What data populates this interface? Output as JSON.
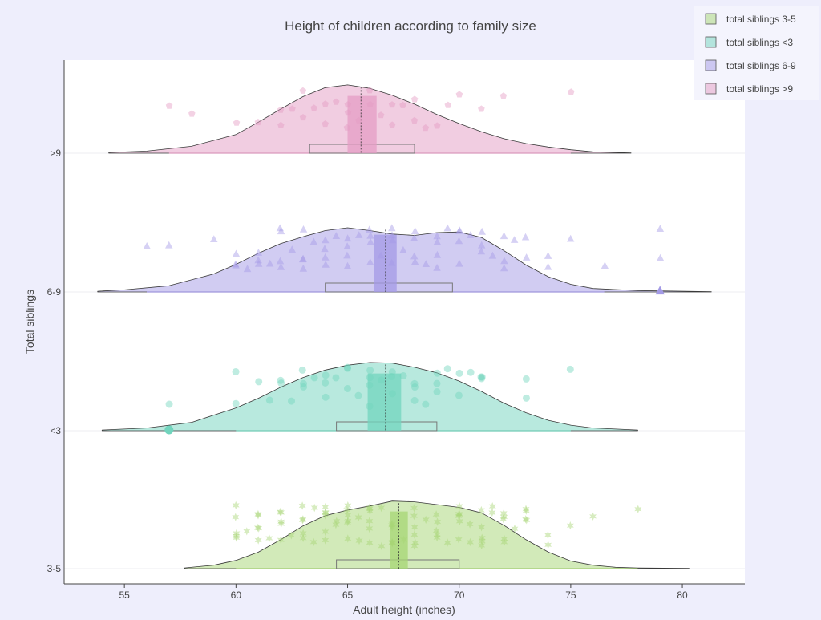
{
  "chart_data": {
    "type": "violin",
    "title": "Height of children according to family size",
    "xlabel": "Adult height (inches)",
    "ylabel": "Total siblings",
    "xlim": [
      52.3,
      82.8
    ],
    "xticks": [
      55,
      60,
      65,
      70,
      75,
      80
    ],
    "categories": [
      "3-5",
      "<3",
      "6-9",
      ">9"
    ],
    "legend_position": "top-right",
    "grid": true,
    "series": [
      {
        "name": "total siblings 3-5",
        "category": "3-5",
        "color": "#a6d574",
        "marker": "star",
        "kde_range": [
          57.7,
          80.3
        ],
        "whiskers": [
          60,
          78
        ],
        "q1": 64.5,
        "median": 67.0,
        "q3": 70.0,
        "mean": 67.3,
        "ci": [
          66.9,
          67.7
        ],
        "outliers": [],
        "density": [
          [
            57.7,
            0.01
          ],
          [
            59,
            0.05
          ],
          [
            60,
            0.12
          ],
          [
            61,
            0.24
          ],
          [
            62,
            0.42
          ],
          [
            63,
            0.62
          ],
          [
            64,
            0.77
          ],
          [
            65,
            0.85
          ],
          [
            66,
            0.91
          ],
          [
            67,
            0.98
          ],
          [
            68,
            0.97
          ],
          [
            69,
            0.93
          ],
          [
            70,
            0.89
          ],
          [
            71,
            0.81
          ],
          [
            72,
            0.63
          ],
          [
            73,
            0.42
          ],
          [
            74,
            0.24
          ],
          [
            75,
            0.11
          ],
          [
            76,
            0.05
          ],
          [
            77,
            0.02
          ],
          [
            78,
            0.01
          ],
          [
            80.3,
            0.005
          ]
        ],
        "points_x": [
          60,
          60,
          60,
          60,
          60,
          60.5,
          61,
          61,
          61,
          61,
          61,
          61.5,
          62,
          62,
          62,
          62,
          62,
          62.5,
          63,
          63,
          63,
          63,
          63,
          63.5,
          63.5,
          64,
          64,
          64,
          64,
          64,
          64,
          64.5,
          64.5,
          65,
          65,
          65,
          65,
          65,
          65,
          65.5,
          65.5,
          66,
          66,
          66,
          66,
          66,
          66,
          66.5,
          66.5,
          67,
          67,
          67,
          67,
          67,
          67,
          67.5,
          68,
          68,
          68,
          68,
          68,
          68,
          68.5,
          69,
          69,
          69,
          69,
          69,
          69.5,
          70,
          70,
          70,
          70,
          70,
          70,
          70.5,
          70.5,
          71,
          71,
          71,
          71,
          71,
          71.5,
          71.5,
          72,
          72,
          72,
          72,
          72,
          72.5,
          73,
          73,
          73,
          73,
          74,
          74,
          75,
          76,
          78
        ]
      },
      {
        "name": "total siblings <3",
        "category": "<3",
        "color": "#72d4bd",
        "marker": "circle",
        "kde_range": [
          54.0,
          78.0
        ],
        "whiskers": [
          60,
          75
        ],
        "q1": 64.5,
        "median": 66.7,
        "q3": 69.0,
        "mean": 66.7,
        "ci": [
          65.9,
          67.4
        ],
        "outliers": [
          57
        ],
        "density": [
          [
            54,
            0.01
          ],
          [
            56,
            0.04
          ],
          [
            58,
            0.12
          ],
          [
            60,
            0.33
          ],
          [
            61,
            0.47
          ],
          [
            62,
            0.63
          ],
          [
            63,
            0.77
          ],
          [
            64,
            0.88
          ],
          [
            65,
            0.95
          ],
          [
            66,
            0.99
          ],
          [
            67,
            0.98
          ],
          [
            68,
            0.92
          ],
          [
            69,
            0.84
          ],
          [
            70,
            0.72
          ],
          [
            71,
            0.57
          ],
          [
            72,
            0.4
          ],
          [
            73,
            0.26
          ],
          [
            74,
            0.15
          ],
          [
            75,
            0.08
          ],
          [
            76,
            0.04
          ],
          [
            78,
            0.01
          ]
        ],
        "points_x": [
          57,
          60,
          60,
          61,
          61.5,
          62,
          62,
          62.5,
          63,
          63,
          63,
          63.5,
          64,
          64,
          64,
          64.5,
          65,
          65,
          65,
          65.5,
          66,
          66,
          66,
          66,
          66.5,
          67,
          67,
          67,
          67.5,
          68,
          68,
          68,
          68.5,
          69,
          69,
          69,
          69.5,
          70,
          70,
          70.5,
          71,
          71,
          71,
          73,
          73,
          75
        ]
      },
      {
        "name": "total siblings 6-9",
        "category": "6-9",
        "color": "#a39ae6",
        "marker": "triangle-up",
        "kde_range": [
          53.8,
          81.3
        ],
        "whiskers": [
          56,
          76.5
        ],
        "q1": 64.0,
        "median": 66.5,
        "q3": 69.7,
        "mean": 66.7,
        "ci": [
          66.2,
          67.2
        ],
        "outliers": [
          79
        ],
        "density": [
          [
            53.8,
            0.01
          ],
          [
            55,
            0.03
          ],
          [
            57,
            0.09
          ],
          [
            59,
            0.26
          ],
          [
            60,
            0.4
          ],
          [
            61,
            0.56
          ],
          [
            62,
            0.7
          ],
          [
            63,
            0.8
          ],
          [
            64,
            0.89
          ],
          [
            65,
            0.93
          ],
          [
            66,
            0.89
          ],
          [
            67,
            0.84
          ],
          [
            68,
            0.82
          ],
          [
            69,
            0.86
          ],
          [
            70,
            0.87
          ],
          [
            71,
            0.79
          ],
          [
            72,
            0.6
          ],
          [
            73,
            0.39
          ],
          [
            74,
            0.22
          ],
          [
            75,
            0.11
          ],
          [
            76,
            0.05
          ],
          [
            78,
            0.02
          ],
          [
            81.3,
            0.005
          ]
        ],
        "points_x": [
          56,
          57,
          59,
          60,
          60,
          60,
          60.5,
          61,
          61,
          61,
          61.5,
          62,
          62,
          62,
          62,
          62.5,
          63,
          63,
          63,
          63,
          63.5,
          64,
          64,
          64,
          64,
          64.5,
          65,
          65,
          65,
          65,
          65.5,
          66,
          66,
          66,
          66,
          66.5,
          67,
          67,
          67,
          67,
          67.5,
          68,
          68,
          68,
          68,
          68.5,
          69,
          69,
          69,
          69,
          69.5,
          70,
          70,
          70,
          70,
          70.5,
          71,
          71,
          71,
          71.5,
          72,
          72,
          72,
          72.5,
          73,
          73,
          74,
          74,
          75,
          76.5,
          79,
          79
        ]
      },
      {
        "name": "total siblings >9",
        "category": ">9",
        "color": "#e49cc4",
        "marker": "pentagon",
        "kde_range": [
          54.3,
          77.7
        ],
        "whiskers": [
          57,
          75
        ],
        "q1": 63.3,
        "median": 65.8,
        "q3": 68.0,
        "mean": 65.6,
        "ci": [
          65.0,
          66.3
        ],
        "outliers": [],
        "density": [
          [
            54.3,
            0.01
          ],
          [
            56,
            0.03
          ],
          [
            58,
            0.1
          ],
          [
            60,
            0.27
          ],
          [
            61,
            0.45
          ],
          [
            62,
            0.64
          ],
          [
            63,
            0.82
          ],
          [
            64,
            0.95
          ],
          [
            65,
            0.99
          ],
          [
            66,
            0.94
          ],
          [
            67,
            0.84
          ],
          [
            68,
            0.71
          ],
          [
            69,
            0.56
          ],
          [
            70,
            0.43
          ],
          [
            71,
            0.31
          ],
          [
            72,
            0.21
          ],
          [
            73,
            0.14
          ],
          [
            74,
            0.09
          ],
          [
            75,
            0.05
          ],
          [
            76,
            0.02
          ],
          [
            77.7,
            0.005
          ]
        ],
        "points_x": [
          57,
          58,
          60,
          61,
          62,
          62,
          62.5,
          63,
          63,
          63.5,
          64,
          64,
          64.5,
          65,
          65,
          65,
          65.5,
          66,
          66,
          66.5,
          67,
          67,
          67.5,
          68,
          68,
          68.5,
          69,
          69.5,
          70,
          71,
          72,
          75
        ]
      }
    ]
  }
}
